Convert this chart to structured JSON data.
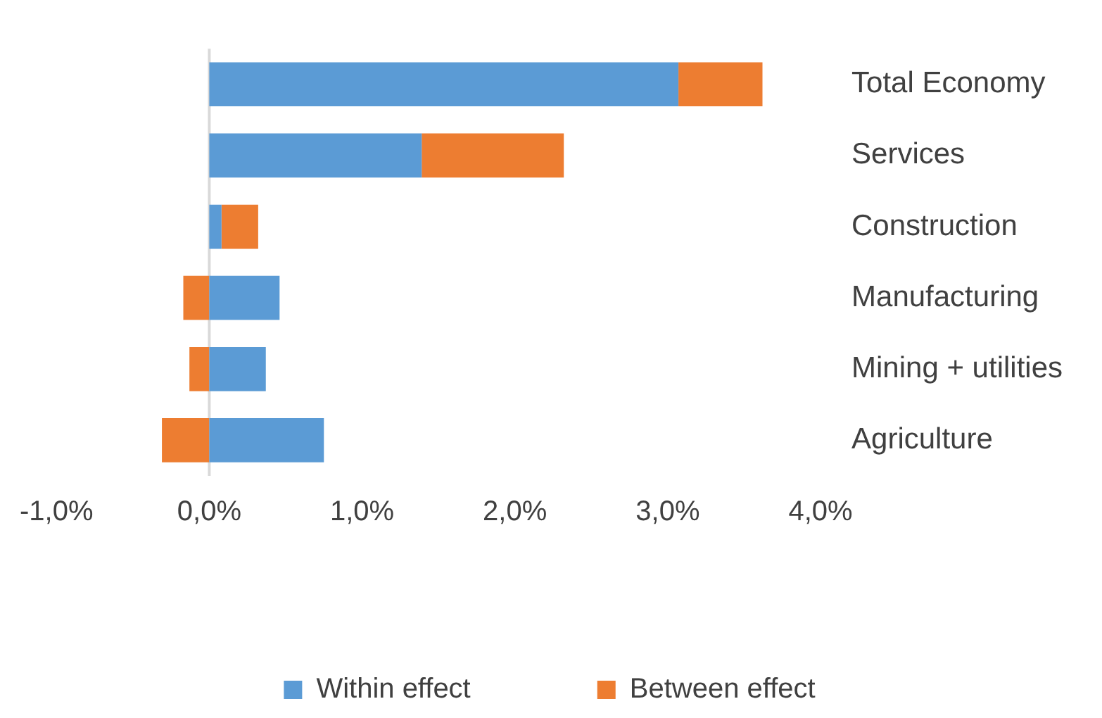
{
  "chart_data": {
    "type": "bar",
    "orientation": "horizontal",
    "stacked": true,
    "categories": [
      "Total Economy",
      "Services",
      "Construction",
      "Manufacturing",
      "Mining + utilities",
      "Agriculture"
    ],
    "series": [
      {
        "name": "Within effect",
        "color": "#5b9bd5",
        "values": [
          3.07,
          1.39,
          0.08,
          0.46,
          0.37,
          0.75
        ]
      },
      {
        "name": "Between effect",
        "color": "#ed7d31",
        "values": [
          0.55,
          0.93,
          0.24,
          -0.17,
          -0.13,
          -0.31
        ]
      }
    ],
    "xlim": [
      -1,
      4
    ],
    "xticks": [
      {
        "value": -1,
        "label": "-1,0%"
      },
      {
        "value": 0,
        "label": "0,0%"
      },
      {
        "value": 1,
        "label": "1,0%"
      },
      {
        "value": 2,
        "label": "2,0%"
      },
      {
        "value": 3,
        "label": "3,0%"
      },
      {
        "value": 4,
        "label": "4,0%"
      }
    ],
    "ref_lines": [
      {
        "axis": "x",
        "value": 0,
        "color": "#d9d9d9"
      }
    ],
    "grid": false,
    "legend": "bottom"
  }
}
